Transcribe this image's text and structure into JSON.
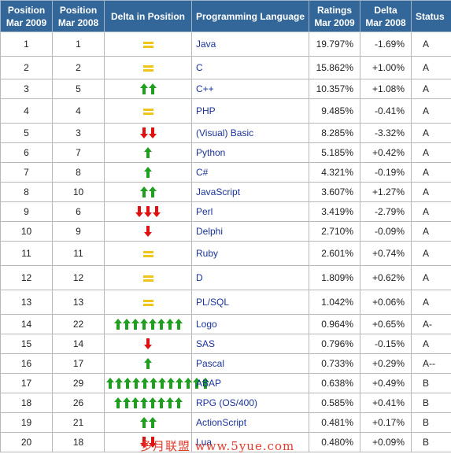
{
  "headers": {
    "pos2009": [
      "Position",
      "Mar 2009"
    ],
    "pos2008": [
      "Position",
      "Mar 2008"
    ],
    "delta_pos": "Delta in Position",
    "language": "Programming Language",
    "ratings": [
      "Ratings",
      "Mar 2009"
    ],
    "delta": [
      "Delta",
      "Mar 2008"
    ],
    "status": "Status"
  },
  "colors": {
    "header_bg": "#336699",
    "arrow_up": "#1f9e1f",
    "arrow_down": "#e01010",
    "equal": "#f0c419",
    "language_text": "#1a3399"
  },
  "rows": [
    {
      "pos2009": "1",
      "pos2008": "1",
      "change": 0,
      "language": "Java",
      "rating": "19.797%",
      "delta": "-1.69%",
      "status": "A"
    },
    {
      "pos2009": "2",
      "pos2008": "2",
      "change": 0,
      "language": "C",
      "rating": "15.862%",
      "delta": "+1.00%",
      "status": "A"
    },
    {
      "pos2009": "3",
      "pos2008": "5",
      "change": 2,
      "language": "C++",
      "rating": "10.357%",
      "delta": "+1.08%",
      "status": "A"
    },
    {
      "pos2009": "4",
      "pos2008": "4",
      "change": 0,
      "language": "PHP",
      "rating": "9.485%",
      "delta": "-0.41%",
      "status": "A"
    },
    {
      "pos2009": "5",
      "pos2008": "3",
      "change": -2,
      "language": "(Visual) Basic",
      "rating": "8.285%",
      "delta": "-3.32%",
      "status": "A"
    },
    {
      "pos2009": "6",
      "pos2008": "7",
      "change": 1,
      "language": "Python",
      "rating": "5.185%",
      "delta": "+0.42%",
      "status": "A"
    },
    {
      "pos2009": "7",
      "pos2008": "8",
      "change": 1,
      "language": "C#",
      "rating": "4.321%",
      "delta": "-0.19%",
      "status": "A"
    },
    {
      "pos2009": "8",
      "pos2008": "10",
      "change": 2,
      "language": "JavaScript",
      "rating": "3.607%",
      "delta": "+1.27%",
      "status": "A"
    },
    {
      "pos2009": "9",
      "pos2008": "6",
      "change": -3,
      "language": "Perl",
      "rating": "3.419%",
      "delta": "-2.79%",
      "status": "A"
    },
    {
      "pos2009": "10",
      "pos2008": "9",
      "change": -1,
      "language": "Delphi",
      "rating": "2.710%",
      "delta": "-0.09%",
      "status": "A"
    },
    {
      "pos2009": "11",
      "pos2008": "11",
      "change": 0,
      "language": "Ruby",
      "rating": "2.601%",
      "delta": "+0.74%",
      "status": "A"
    },
    {
      "pos2009": "12",
      "pos2008": "12",
      "change": 0,
      "language": "D",
      "rating": "1.809%",
      "delta": "+0.62%",
      "status": "A"
    },
    {
      "pos2009": "13",
      "pos2008": "13",
      "change": 0,
      "language": "PL/SQL",
      "rating": "1.042%",
      "delta": "+0.06%",
      "status": "A"
    },
    {
      "pos2009": "14",
      "pos2008": "22",
      "change": 8,
      "language": "Logo",
      "rating": "0.964%",
      "delta": "+0.65%",
      "status": "A-"
    },
    {
      "pos2009": "15",
      "pos2008": "14",
      "change": -1,
      "language": "SAS",
      "rating": "0.796%",
      "delta": "-0.15%",
      "status": "A"
    },
    {
      "pos2009": "16",
      "pos2008": "17",
      "change": 1,
      "language": "Pascal",
      "rating": "0.733%",
      "delta": "+0.29%",
      "status": "A--"
    },
    {
      "pos2009": "17",
      "pos2008": "29",
      "change": 12,
      "language": "ABAP",
      "rating": "0.638%",
      "delta": "+0.49%",
      "status": "B"
    },
    {
      "pos2009": "18",
      "pos2008": "26",
      "change": 8,
      "language": "RPG (OS/400)",
      "rating": "0.585%",
      "delta": "+0.41%",
      "status": "B"
    },
    {
      "pos2009": "19",
      "pos2008": "21",
      "change": 2,
      "language": "ActionScript",
      "rating": "0.481%",
      "delta": "+0.17%",
      "status": "B"
    },
    {
      "pos2009": "20",
      "pos2008": "18",
      "change": -2,
      "language": "Lua",
      "rating": "0.480%",
      "delta": "+0.09%",
      "status": "B"
    }
  ],
  "watermark": "多月联盟  www.5yue.com"
}
